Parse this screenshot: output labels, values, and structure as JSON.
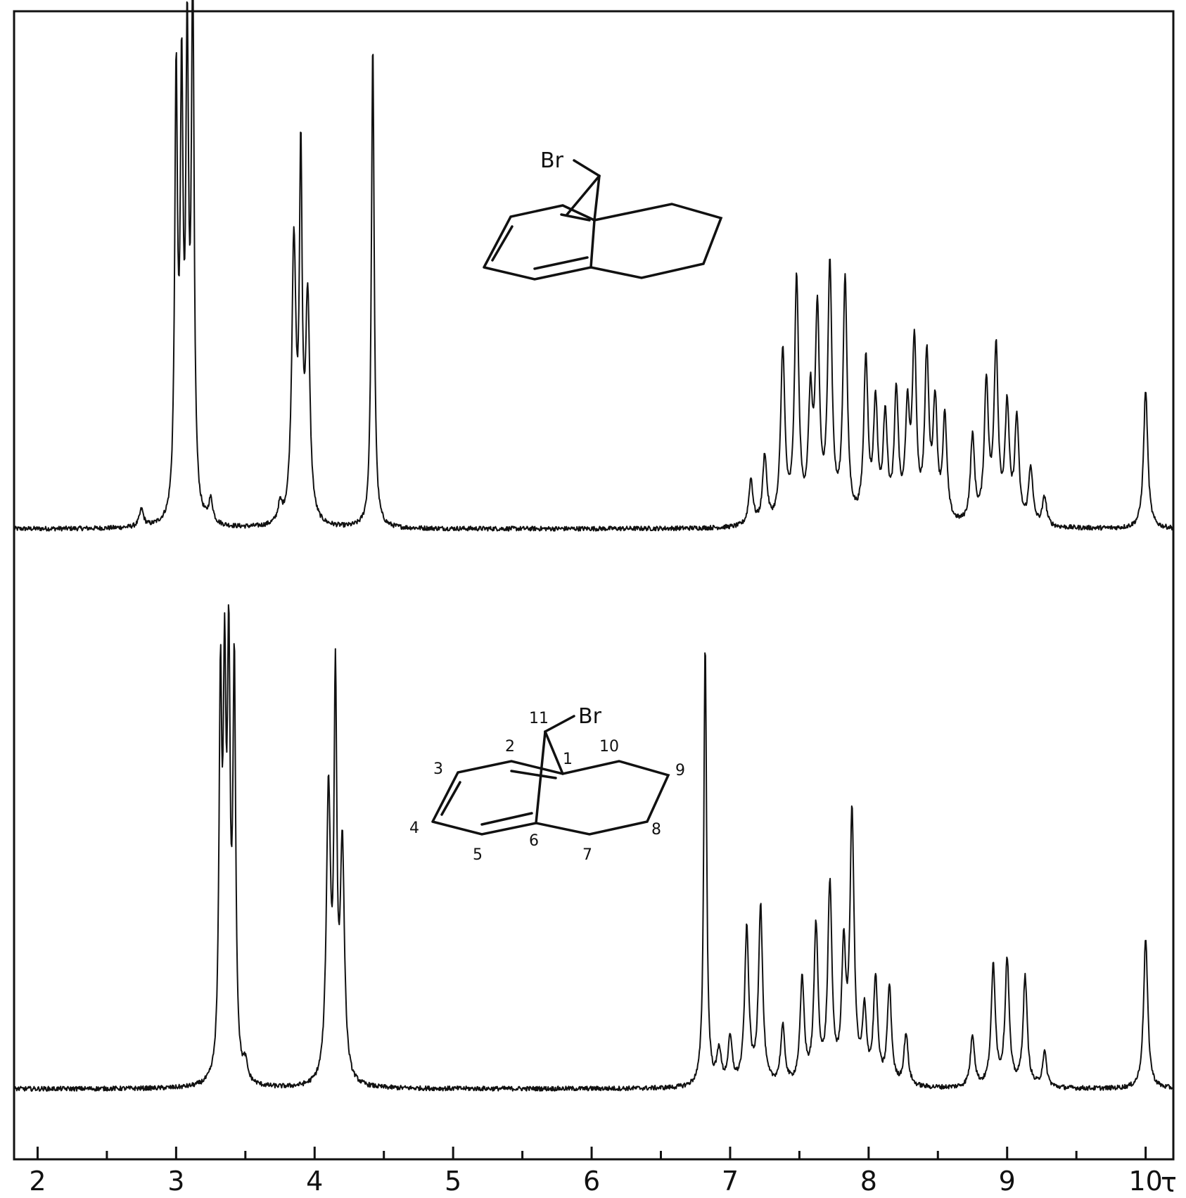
{
  "chart_data": {
    "type": "line",
    "x_axis": {
      "unit": "τ",
      "range": [
        1.83,
        10.2
      ],
      "reversed": false,
      "major_ticks": [
        2,
        3,
        4,
        5,
        6,
        7,
        8,
        9,
        10
      ],
      "minor_ticks": [
        2.5,
        3.5,
        4.5,
        5.5,
        6.5,
        7.5,
        8.5,
        9.5
      ],
      "tick_labels": [
        "2",
        "3",
        "4",
        "5",
        "6",
        "7",
        "8",
        "9",
        "10"
      ]
    },
    "grid": false,
    "series": [
      {
        "peaks": [
          {
            "x": 2.75,
            "h": 0.03
          },
          {
            "x": 3.0,
            "h": 0.75
          },
          {
            "x": 3.04,
            "h": 0.72
          },
          {
            "x": 3.08,
            "h": 0.78
          },
          {
            "x": 3.12,
            "h": 0.9
          },
          {
            "x": 3.25,
            "h": 0.04
          },
          {
            "x": 3.75,
            "h": 0.03
          },
          {
            "x": 3.85,
            "h": 0.48
          },
          {
            "x": 3.9,
            "h": 0.6
          },
          {
            "x": 3.95,
            "h": 0.38
          },
          {
            "x": 4.42,
            "h": 0.84
          },
          {
            "x": 7.15,
            "h": 0.08
          },
          {
            "x": 7.25,
            "h": 0.12
          },
          {
            "x": 7.38,
            "h": 0.3
          },
          {
            "x": 7.48,
            "h": 0.42
          },
          {
            "x": 7.58,
            "h": 0.2
          },
          {
            "x": 7.63,
            "h": 0.35
          },
          {
            "x": 7.72,
            "h": 0.44
          },
          {
            "x": 7.83,
            "h": 0.42
          },
          {
            "x": 7.98,
            "h": 0.28
          },
          {
            "x": 8.05,
            "h": 0.2
          },
          {
            "x": 8.12,
            "h": 0.18
          },
          {
            "x": 8.2,
            "h": 0.22
          },
          {
            "x": 8.28,
            "h": 0.18
          },
          {
            "x": 8.33,
            "h": 0.3
          },
          {
            "x": 8.42,
            "h": 0.28
          },
          {
            "x": 8.48,
            "h": 0.2
          },
          {
            "x": 8.55,
            "h": 0.18
          },
          {
            "x": 8.75,
            "h": 0.15
          },
          {
            "x": 8.85,
            "h": 0.24
          },
          {
            "x": 8.92,
            "h": 0.3
          },
          {
            "x": 9.0,
            "h": 0.2
          },
          {
            "x": 9.07,
            "h": 0.18
          },
          {
            "x": 9.17,
            "h": 0.1
          },
          {
            "x": 9.27,
            "h": 0.05
          },
          {
            "x": 10.0,
            "h": 0.24
          }
        ]
      },
      {
        "peaks": [
          {
            "x": 3.32,
            "h": 0.65
          },
          {
            "x": 3.35,
            "h": 0.62
          },
          {
            "x": 3.38,
            "h": 0.68
          },
          {
            "x": 3.42,
            "h": 0.7
          },
          {
            "x": 3.5,
            "h": 0.03
          },
          {
            "x": 4.1,
            "h": 0.5
          },
          {
            "x": 4.15,
            "h": 0.66
          },
          {
            "x": 4.2,
            "h": 0.4
          },
          {
            "x": 6.82,
            "h": 0.77
          },
          {
            "x": 6.92,
            "h": 0.06
          },
          {
            "x": 7.0,
            "h": 0.08
          },
          {
            "x": 7.12,
            "h": 0.27
          },
          {
            "x": 7.22,
            "h": 0.31
          },
          {
            "x": 7.38,
            "h": 0.1
          },
          {
            "x": 7.52,
            "h": 0.18
          },
          {
            "x": 7.62,
            "h": 0.27
          },
          {
            "x": 7.72,
            "h": 0.34
          },
          {
            "x": 7.82,
            "h": 0.22
          },
          {
            "x": 7.88,
            "h": 0.46
          },
          {
            "x": 7.97,
            "h": 0.12
          },
          {
            "x": 8.05,
            "h": 0.18
          },
          {
            "x": 8.15,
            "h": 0.17
          },
          {
            "x": 8.27,
            "h": 0.09
          },
          {
            "x": 8.75,
            "h": 0.09
          },
          {
            "x": 8.9,
            "h": 0.21
          },
          {
            "x": 9.0,
            "h": 0.22
          },
          {
            "x": 9.13,
            "h": 0.19
          },
          {
            "x": 9.27,
            "h": 0.06
          },
          {
            "x": 10.0,
            "h": 0.26
          }
        ]
      }
    ],
    "annotations": {
      "top_structure": {
        "substituent": "Br"
      },
      "bottom_structure": {
        "substituent": "Br",
        "positions": [
          "1",
          "2",
          "3",
          "4",
          "5",
          "6",
          "7",
          "8",
          "9",
          "10",
          "11"
        ]
      }
    }
  }
}
